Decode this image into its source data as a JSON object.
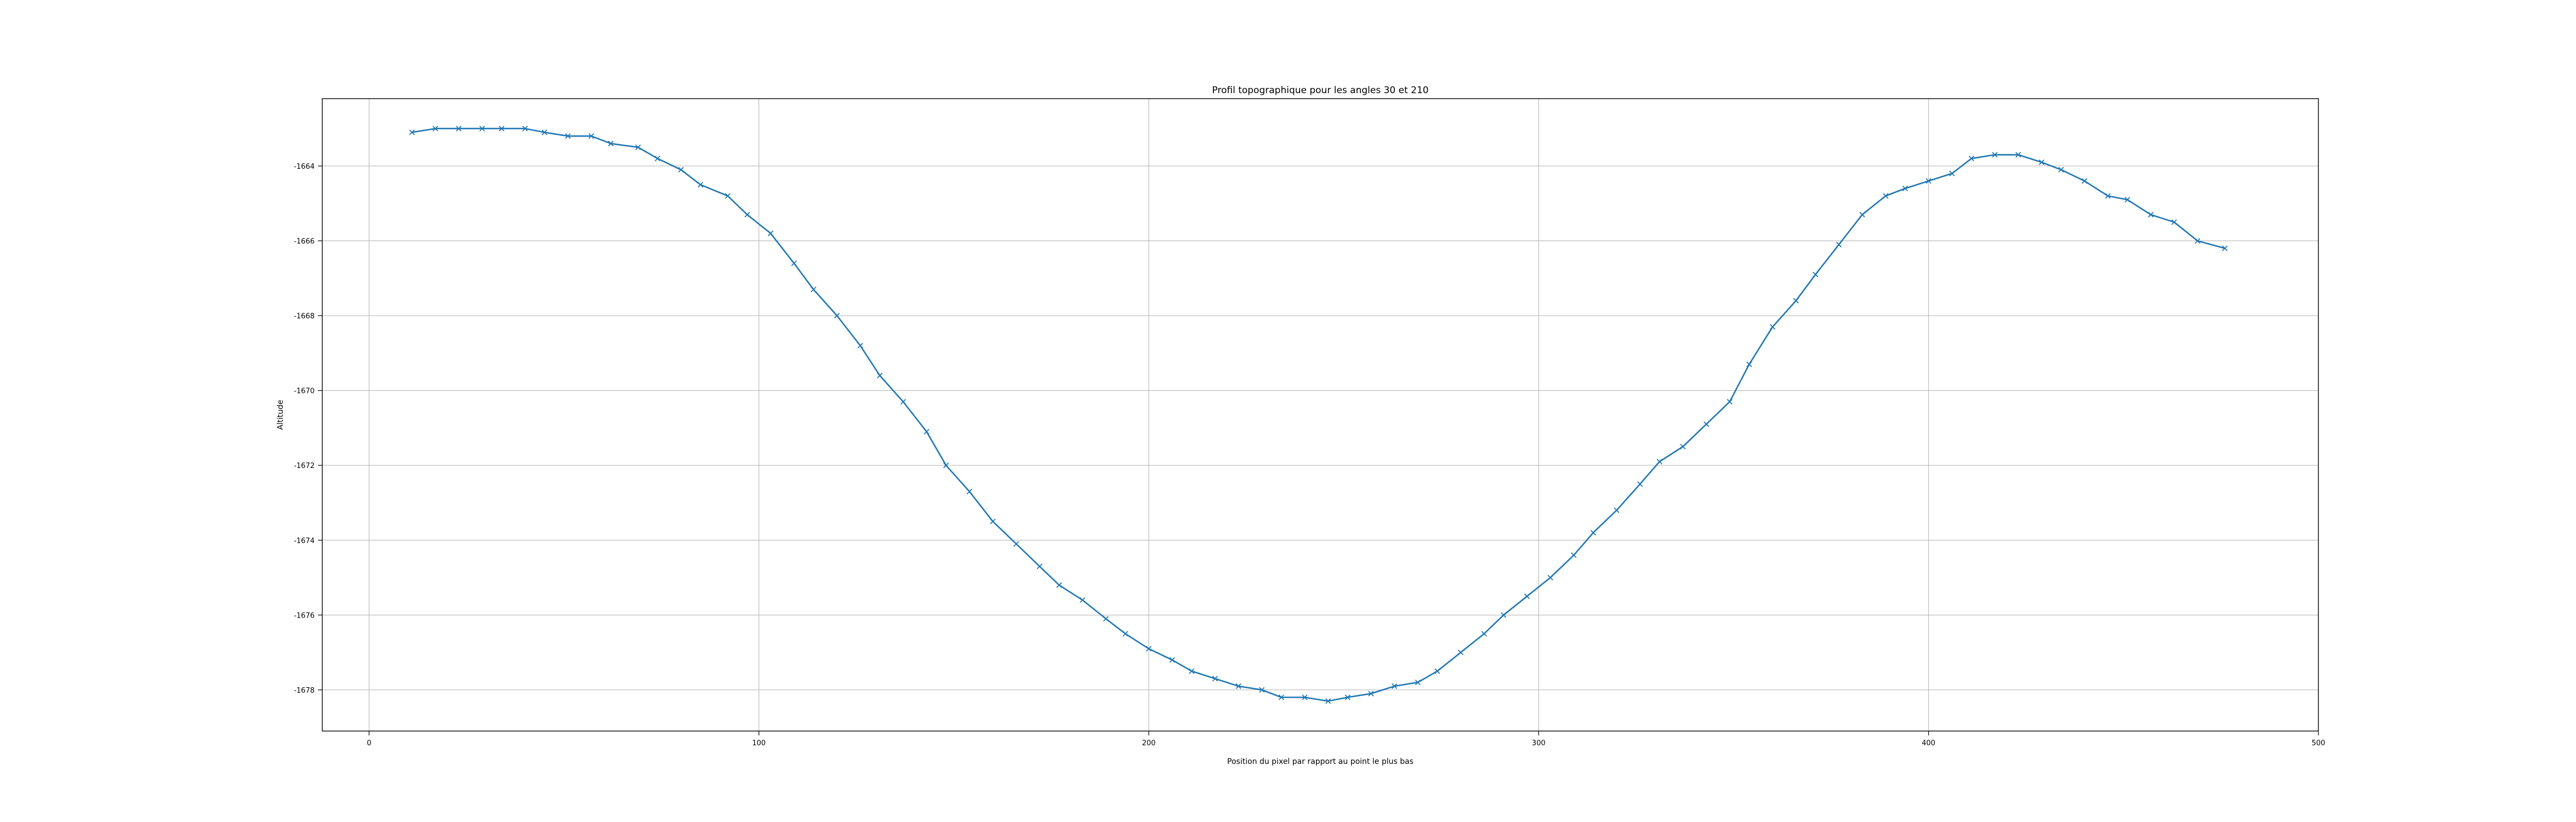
{
  "chart_data": {
    "type": "line",
    "title": "Profil topographique pour les angles 30 et 210",
    "xlabel": "Position du pixel par rapport au point le plus bas",
    "ylabel": "Altitude",
    "xlim": [
      -12,
      500
    ],
    "ylim": [
      -1679.1,
      -1662.2
    ],
    "xticks": [
      0,
      100,
      200,
      300,
      400,
      500
    ],
    "yticks": [
      -1678,
      -1676,
      -1674,
      -1672,
      -1670,
      -1668,
      -1666,
      -1664
    ],
    "grid": true,
    "legend": false,
    "series": [
      {
        "color": "#1f77b4",
        "marker": "x",
        "x": [
          11,
          17,
          23,
          29,
          34,
          40,
          45,
          51,
          57,
          62,
          69,
          74,
          80,
          85,
          92,
          97,
          103,
          109,
          114,
          120,
          126,
          131,
          137,
          143,
          148,
          154,
          160,
          166,
          172,
          177,
          183,
          189,
          194,
          200,
          206,
          211,
          217,
          223,
          229,
          234,
          240,
          246,
          251,
          257,
          263,
          269,
          274,
          280,
          286,
          291,
          297,
          303,
          309,
          314,
          320,
          326,
          331,
          337,
          343,
          349,
          354,
          360,
          366,
          371,
          377,
          383,
          389,
          394,
          400,
          406,
          411,
          417,
          423,
          429,
          434,
          440,
          446,
          451,
          457,
          463,
          469,
          476
        ],
        "y": [
          -1663.1,
          -1663.0,
          -1663.0,
          -1663.0,
          -1663.0,
          -1663.0,
          -1663.1,
          -1663.2,
          -1663.2,
          -1663.4,
          -1663.5,
          -1663.8,
          -1664.1,
          -1664.5,
          -1664.8,
          -1665.3,
          -1665.8,
          -1666.6,
          -1667.3,
          -1668.0,
          -1668.8,
          -1669.6,
          -1670.3,
          -1671.1,
          -1672.0,
          -1672.7,
          -1673.5,
          -1674.1,
          -1674.7,
          -1675.2,
          -1675.6,
          -1676.1,
          -1676.5,
          -1676.9,
          -1677.2,
          -1677.5,
          -1677.7,
          -1677.9,
          -1678.0,
          -1678.2,
          -1678.2,
          -1678.3,
          -1678.2,
          -1678.1,
          -1677.9,
          -1677.8,
          -1677.5,
          -1677.0,
          -1676.5,
          -1676.0,
          -1675.5,
          -1675.0,
          -1674.4,
          -1673.8,
          -1673.2,
          -1672.5,
          -1671.9,
          -1671.5,
          -1670.9,
          -1670.3,
          -1669.3,
          -1668.3,
          -1667.6,
          -1666.9,
          -1666.1,
          -1665.3,
          -1664.8,
          -1664.6,
          -1664.4,
          -1664.2,
          -1663.8,
          -1663.7,
          -1663.7,
          -1663.9,
          -1664.1,
          -1664.4,
          -1664.8,
          -1664.9,
          -1665.3,
          -1665.5,
          -1666.0,
          -1666.2
        ]
      }
    ]
  }
}
